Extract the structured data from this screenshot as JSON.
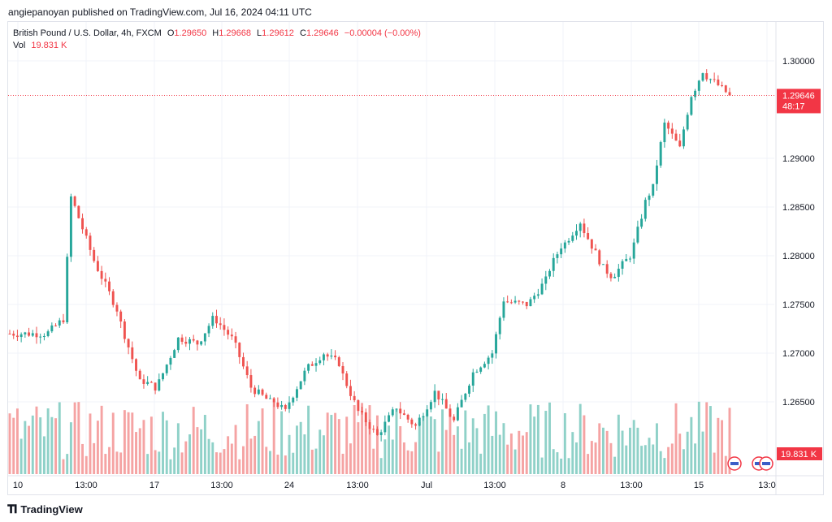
{
  "header": {
    "publish_line": "angiepanoyan published on TradingView.com, Jul 16, 2024 04:11 UTC"
  },
  "legend": {
    "symbol": "British Pound / U.S. Dollar, 4h, FXCM",
    "o_label": "O",
    "o_value": "1.29650",
    "h_label": "H",
    "h_value": "1.29668",
    "l_label": "L",
    "l_value": "1.29612",
    "c_label": "C",
    "c_value": "1.29646",
    "change": "−0.00004 (−0.00%)",
    "vol_label": "Vol",
    "vol_value": "19.831 K"
  },
  "price_tag": {
    "price": "1.29646",
    "countdown": "48:17"
  },
  "volume_tag": "19.831 K",
  "footer": {
    "brand": "TradingView"
  },
  "colors": {
    "up": "#26a69a",
    "down": "#ef5350",
    "up_vol": "#8fd1c8",
    "down_vol": "#f5a3a3",
    "grid": "#f0f3fa",
    "last_price": "#f23645"
  },
  "chart_data": {
    "type": "candlestick",
    "symbol": "GBPUSD",
    "timeframe": "4h",
    "y_ticks": [
      "1.30000",
      "1.29000",
      "1.28500",
      "1.28000",
      "1.27500",
      "1.27000",
      "1.26500"
    ],
    "y_range": [
      1.2608,
      1.3017
    ],
    "x_ticks": [
      "10",
      "13:00",
      "17",
      "13:00",
      "24",
      "13:00",
      "Jul",
      "13:00",
      "8",
      "13:00",
      "15",
      "13:0"
    ],
    "last_price": 1.29646,
    "segments": [
      {
        "n": 10,
        "p": 1.272
      },
      {
        "n": 5,
        "p": 1.2735
      },
      {
        "n": 2,
        "p": 1.286
      },
      {
        "n": 6,
        "p": 1.2795
      },
      {
        "n": 6,
        "p": 1.2745
      },
      {
        "n": 6,
        "p": 1.267
      },
      {
        "n": 4,
        "p": 1.2665
      },
      {
        "n": 6,
        "p": 1.2715
      },
      {
        "n": 5,
        "p": 1.271
      },
      {
        "n": 4,
        "p": 1.2735
      },
      {
        "n": 5,
        "p": 1.2715
      },
      {
        "n": 5,
        "p": 1.2665
      },
      {
        "n": 5,
        "p": 1.265
      },
      {
        "n": 4,
        "p": 1.264
      },
      {
        "n": 5,
        "p": 1.268
      },
      {
        "n": 5,
        "p": 1.27
      },
      {
        "n": 4,
        "p": 1.269
      },
      {
        "n": 5,
        "p": 1.264
      },
      {
        "n": 5,
        "p": 1.2615
      },
      {
        "n": 5,
        "p": 1.2645
      },
      {
        "n": 5,
        "p": 1.2625
      },
      {
        "n": 5,
        "p": 1.266
      },
      {
        "n": 5,
        "p": 1.263
      },
      {
        "n": 5,
        "p": 1.268
      },
      {
        "n": 5,
        "p": 1.27
      },
      {
        "n": 3,
        "p": 1.2755
      },
      {
        "n": 6,
        "p": 1.275
      },
      {
        "n": 5,
        "p": 1.2775
      },
      {
        "n": 4,
        "p": 1.281
      },
      {
        "n": 5,
        "p": 1.2835
      },
      {
        "n": 5,
        "p": 1.2795
      },
      {
        "n": 3,
        "p": 1.278
      },
      {
        "n": 5,
        "p": 1.28
      },
      {
        "n": 4,
        "p": 1.2855
      },
      {
        "n": 2,
        "p": 1.287
      },
      {
        "n": 3,
        "p": 1.2935
      },
      {
        "n": 4,
        "p": 1.291
      },
      {
        "n": 3,
        "p": 1.2965
      },
      {
        "n": 3,
        "p": 1.299
      },
      {
        "n": 4,
        "p": 1.2975
      },
      {
        "n": 3,
        "p": 1.29646
      }
    ]
  }
}
